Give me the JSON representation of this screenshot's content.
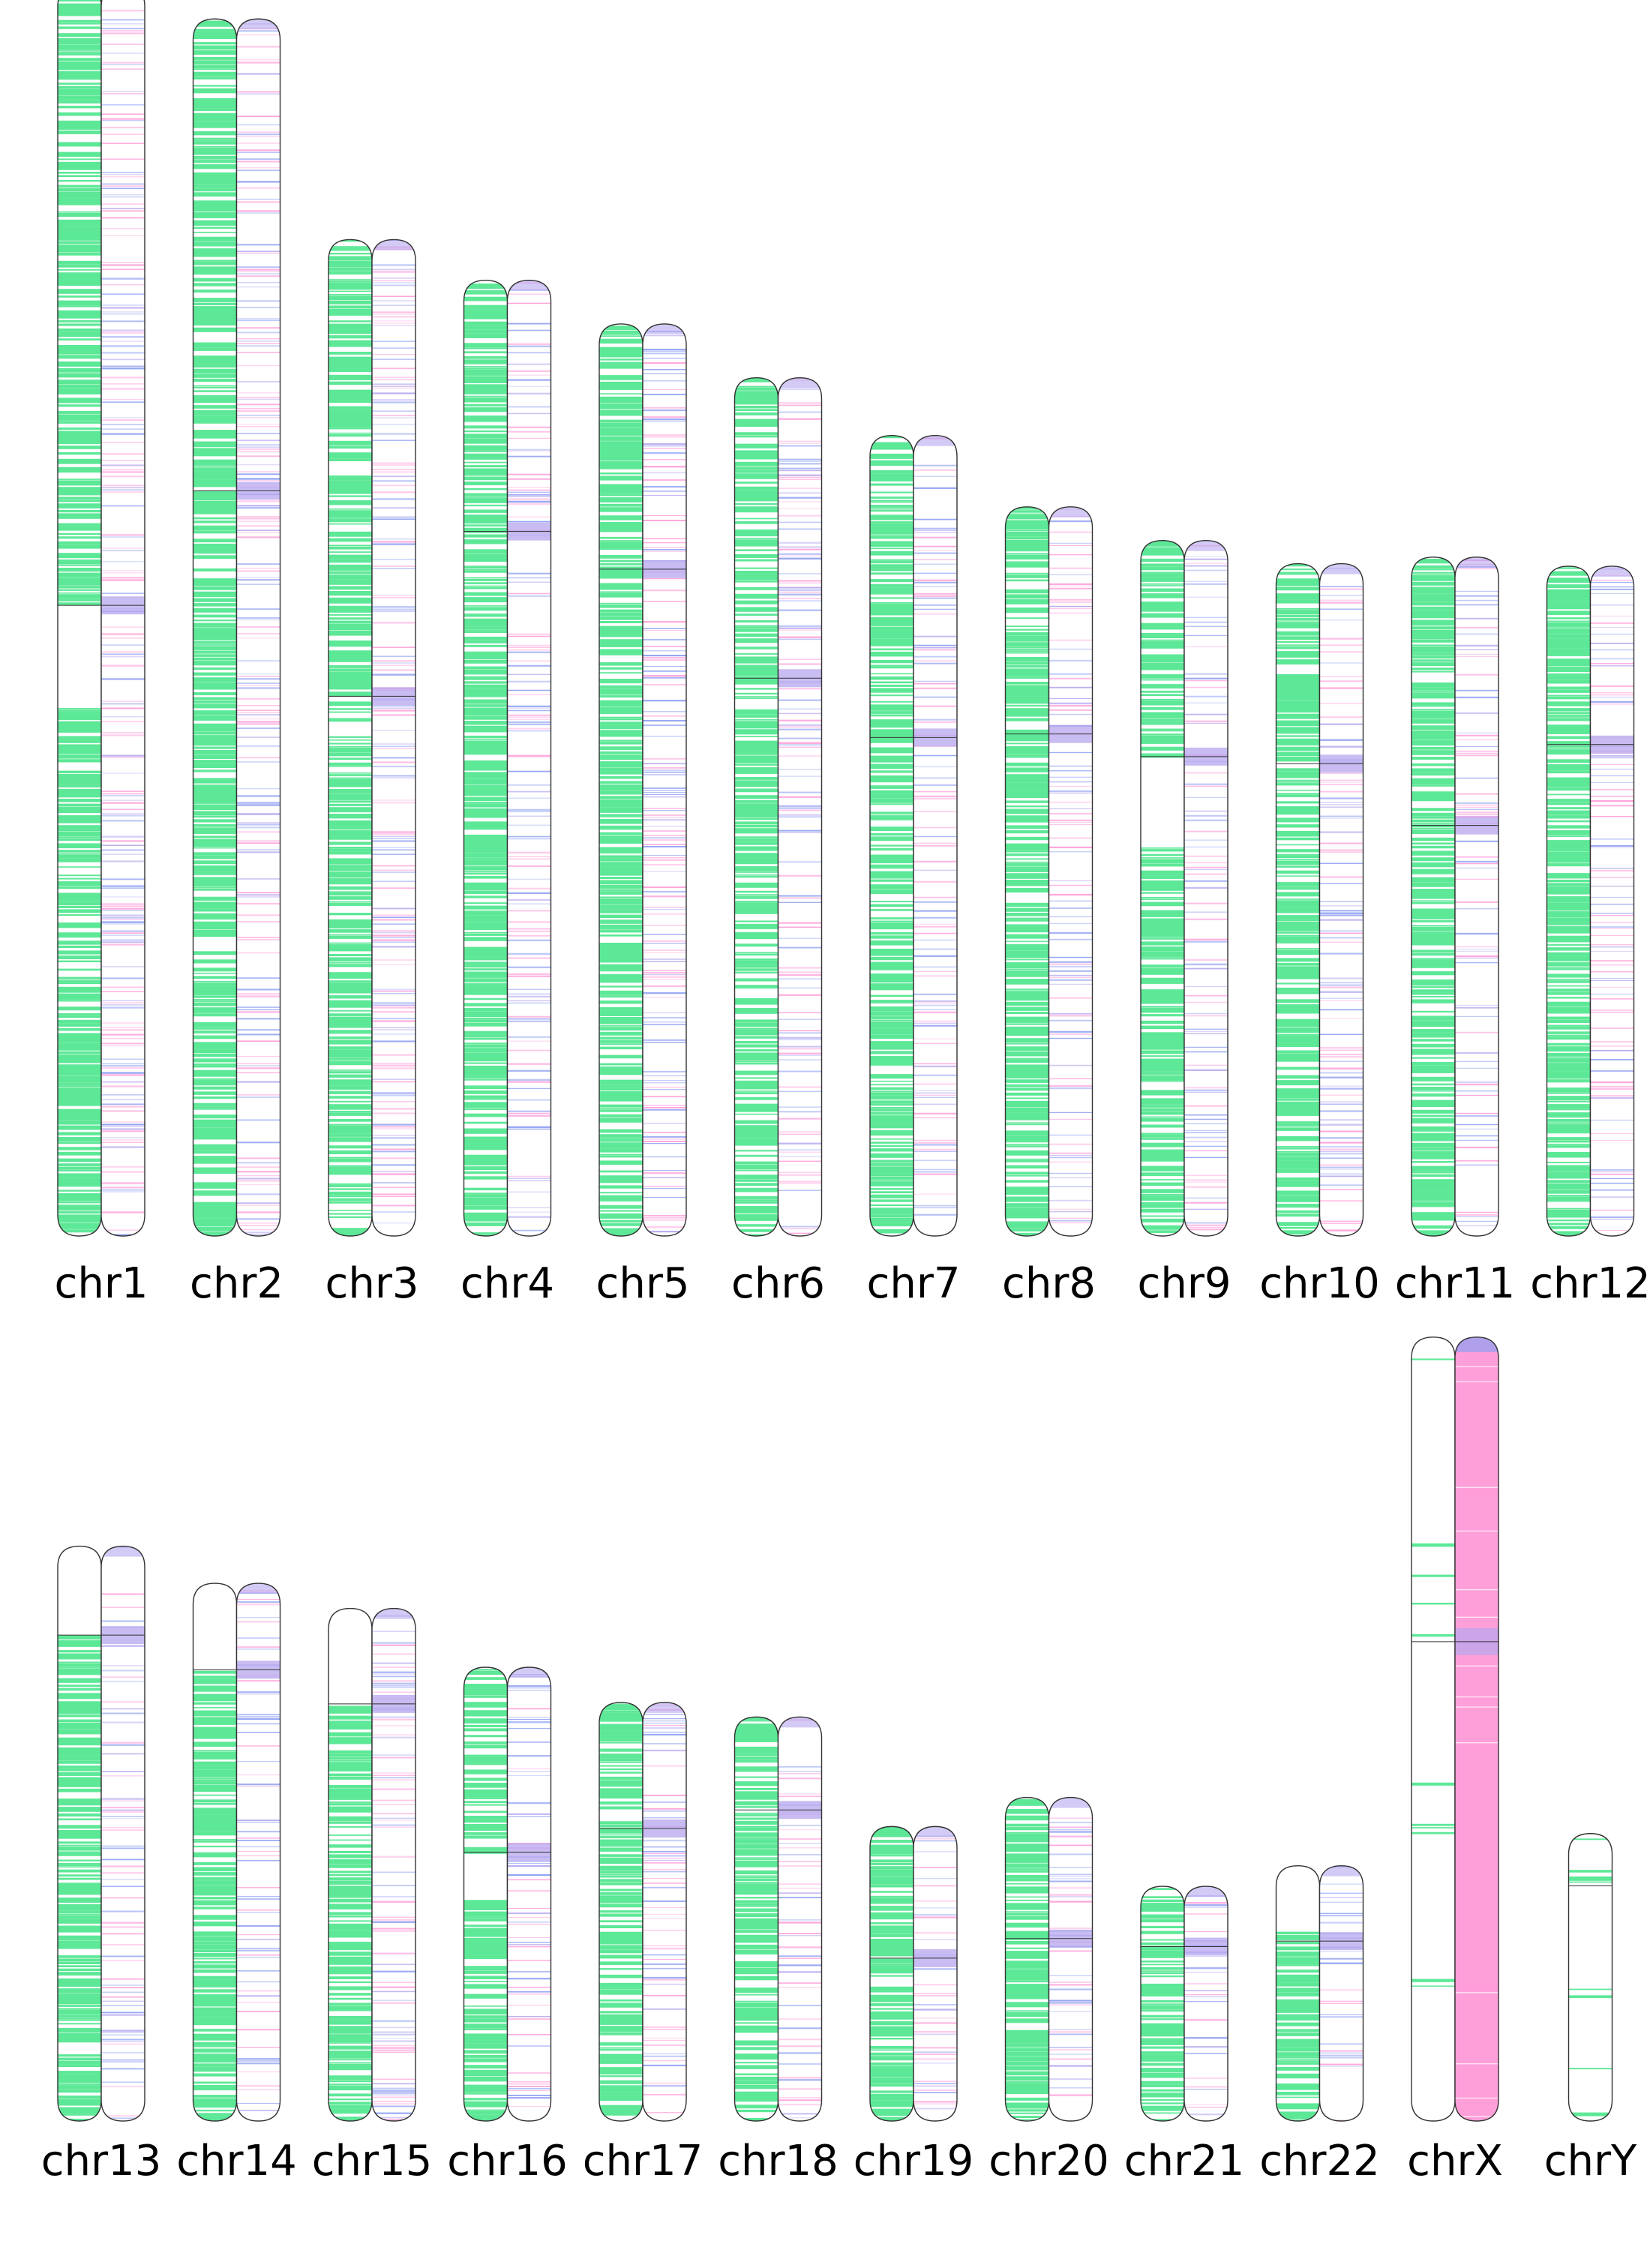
{
  "colors": {
    "track_a": "#5de897",
    "track_b_magenta": "#ff9fd9",
    "track_b_blue": "#8f9ff2",
    "track_b_purple": "#b6a6ee",
    "outline": "#333333",
    "background": "#ffffff"
  },
  "rows": [
    {
      "chromosomes": [
        {
          "name": "chr1",
          "label": "chr1",
          "length": 248.9,
          "centromere": 123.4,
          "a_density": 0.62,
          "b_density": 0.3,
          "a_gap": [
            123.4,
            143.0
          ],
          "b_mode": "mixed"
        },
        {
          "name": "chr2",
          "label": "chr2",
          "length": 242.2,
          "centromere": 93.9,
          "a_density": 0.6,
          "b_density": 0.3,
          "b_mode": "mixed"
        },
        {
          "name": "chr3",
          "label": "chr3",
          "length": 198.3,
          "centromere": 90.9,
          "a_density": 0.6,
          "b_density": 0.3,
          "b_mode": "mixed"
        },
        {
          "name": "chr4",
          "label": "chr4",
          "length": 190.2,
          "centromere": 50.0,
          "a_density": 0.6,
          "b_density": 0.3,
          "b_mode": "mixed"
        },
        {
          "name": "chr5",
          "label": "chr5",
          "length": 181.5,
          "centromere": 48.8,
          "a_density": 0.62,
          "b_density": 0.3,
          "b_mode": "mixed"
        },
        {
          "name": "chr6",
          "label": "chr6",
          "length": 170.8,
          "centromere": 59.8,
          "a_density": 0.6,
          "b_density": 0.3,
          "b_mode": "mixed"
        },
        {
          "name": "chr7",
          "label": "chr7",
          "length": 159.3,
          "centromere": 60.1,
          "a_density": 0.6,
          "b_density": 0.3,
          "b_mode": "mixed"
        },
        {
          "name": "chr8",
          "label": "chr8",
          "length": 145.1,
          "centromere": 45.2,
          "a_density": 0.6,
          "b_density": 0.3,
          "b_mode": "mixed"
        },
        {
          "name": "chr9",
          "label": "chr9",
          "length": 138.4,
          "centromere": 43.0,
          "a_density": 0.6,
          "b_density": 0.3,
          "a_gap": [
            43.0,
            61.0
          ],
          "b_mode": "mixed"
        },
        {
          "name": "chr10",
          "label": "chr10",
          "length": 133.8,
          "centromere": 39.8,
          "a_density": 0.62,
          "b_density": 0.3,
          "b_mode": "mixed"
        },
        {
          "name": "chr11",
          "label": "chr11",
          "length": 135.1,
          "centromere": 53.4,
          "a_density": 0.62,
          "b_density": 0.25,
          "b_mode": "mixed"
        },
        {
          "name": "chr12",
          "label": "chr12",
          "length": 133.3,
          "centromere": 35.5,
          "a_density": 0.62,
          "b_density": 0.3,
          "b_mode": "mixed"
        }
      ]
    },
    {
      "chromosomes": [
        {
          "name": "chr13",
          "label": "chr13",
          "length": 114.4,
          "centromere": 17.7,
          "a_density": 0.62,
          "b_density": 0.28,
          "a_gap": [
            0,
            17.7
          ],
          "b_mode": "mixed"
        },
        {
          "name": "chr14",
          "label": "chr14",
          "length": 107.0,
          "centromere": 17.2,
          "a_density": 0.62,
          "b_density": 0.28,
          "a_gap": [
            0,
            17.2
          ],
          "b_mode": "mixed"
        },
        {
          "name": "chr15",
          "label": "chr15",
          "length": 102.0,
          "centromere": 19.0,
          "a_density": 0.62,
          "b_density": 0.3,
          "a_gap": [
            0,
            19.0
          ],
          "b_mode": "mixed"
        },
        {
          "name": "chr16",
          "label": "chr16",
          "length": 90.3,
          "centromere": 36.8,
          "a_density": 0.55,
          "b_density": 0.3,
          "a_gap": [
            36.8,
            46.0
          ],
          "b_mode": "mixed"
        },
        {
          "name": "chr17",
          "label": "chr17",
          "length": 83.3,
          "centromere": 25.1,
          "a_density": 0.62,
          "b_density": 0.32,
          "b_mode": "mixed"
        },
        {
          "name": "chr18",
          "label": "chr18",
          "length": 80.4,
          "centromere": 18.5,
          "a_density": 0.62,
          "b_density": 0.3,
          "b_mode": "mixed"
        },
        {
          "name": "chr19",
          "label": "chr19",
          "length": 58.6,
          "centromere": 26.2,
          "a_density": 0.62,
          "b_density": 0.3,
          "b_mode": "mixed"
        },
        {
          "name": "chr20",
          "label": "chr20",
          "length": 64.4,
          "centromere": 28.1,
          "a_density": 0.62,
          "b_density": 0.3,
          "b_mode": "mixed"
        },
        {
          "name": "chr21",
          "label": "chr21",
          "length": 46.7,
          "centromere": 12.0,
          "a_density": 0.55,
          "b_density": 0.25,
          "b_mode": "mixed"
        },
        {
          "name": "chr22",
          "label": "chr22",
          "length": 50.8,
          "centromere": 15.0,
          "a_density": 0.62,
          "b_density": 0.3,
          "a_gap": [
            0,
            13.0
          ],
          "b_mode": "mixed"
        },
        {
          "name": "chrX",
          "label": "chrX",
          "length": 156.0,
          "centromere": 60.6,
          "a_density": 0.03,
          "b_density": 0.0,
          "b_mode": "solid-magenta"
        },
        {
          "name": "chrY",
          "label": "chrY",
          "length": 57.2,
          "centromere": 10.4,
          "a_density": 0.06,
          "b_density": 0.0,
          "single": true,
          "b_mode": "none"
        }
      ]
    }
  ]
}
